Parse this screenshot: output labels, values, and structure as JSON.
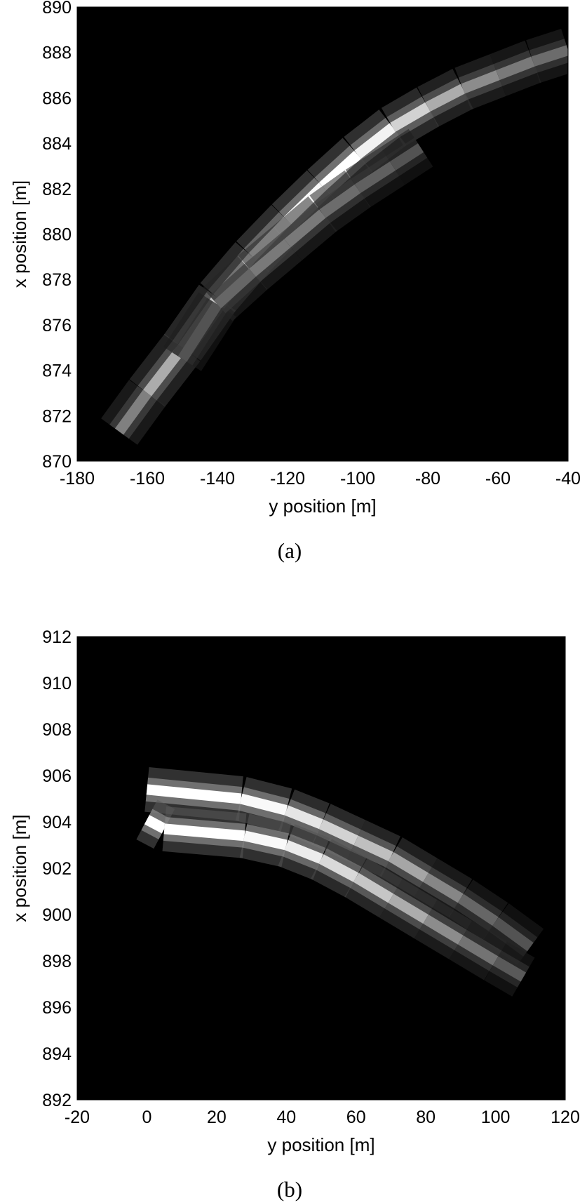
{
  "chart_data": [
    {
      "type": "heatmap",
      "caption": "(a)",
      "title": "",
      "xlabel": "y position [m]",
      "ylabel": "x position [m]",
      "xlim": [
        -180,
        -40
      ],
      "ylim": [
        870,
        890
      ],
      "xticks": [
        -180,
        -160,
        -140,
        -120,
        -100,
        -80,
        -60,
        -40
      ],
      "yticks": [
        870,
        872,
        874,
        876,
        878,
        880,
        882,
        884,
        886,
        888,
        890
      ],
      "background": "#000000",
      "grid": false,
      "series": [
        {
          "points": [
            [
              -168,
              871.3
            ],
            [
              -160,
              873.0
            ],
            [
              -150,
              875.0
            ],
            [
              -140,
              877.2
            ],
            [
              -130,
              879.0
            ],
            [
              -120,
              880.6
            ],
            [
              -110,
              882.1
            ],
            [
              -100,
              883.5
            ],
            [
              -90,
              884.7
            ],
            [
              -80,
              885.6
            ],
            [
              -70,
              886.4
            ],
            [
              -60,
              887.0
            ],
            [
              -50,
              887.6
            ],
            [
              -40,
              888.1
            ]
          ],
          "intensity": [
            0.4,
            0.6,
            0.75,
            0.8,
            0.85,
            0.95,
            1.0,
            1.0,
            0.9,
            0.75,
            0.6,
            0.5,
            0.45,
            0.4
          ]
        },
        {
          "points": [
            [
              -150,
              874.5
            ],
            [
              -140,
              876.9
            ],
            [
              -130,
              878.3
            ],
            [
              -120,
              879.6
            ],
            [
              -110,
              880.9
            ],
            [
              -100,
              882.0
            ],
            [
              -90,
              883.0
            ],
            [
              -82,
              883.8
            ]
          ],
          "intensity": [
            0.3,
            0.35,
            0.45,
            0.5,
            0.45,
            0.4,
            0.35,
            0.3
          ]
        }
      ]
    },
    {
      "type": "heatmap",
      "caption": "(b)",
      "title": "",
      "xlabel": "y position [m]",
      "ylabel": "x position [m]",
      "xlim": [
        -20,
        120
      ],
      "ylim": [
        892,
        912
      ],
      "xticks": [
        -20,
        0,
        20,
        40,
        60,
        80,
        100,
        120
      ],
      "yticks": [
        892,
        894,
        896,
        898,
        900,
        902,
        904,
        906,
        908,
        910,
        912
      ],
      "background": "#000000",
      "grid": false,
      "series": [
        {
          "points": [
            [
              0,
              905.4
            ],
            [
              27,
              905.0
            ],
            [
              40,
              904.5
            ],
            [
              50,
              903.9
            ],
            [
              60,
              903.2
            ],
            [
              70,
              902.5
            ],
            [
              80,
              901.6
            ],
            [
              90,
              900.7
            ],
            [
              100,
              899.7
            ],
            [
              110,
              898.6
            ]
          ],
          "intensity": [
            1.0,
            1.0,
            0.95,
            0.85,
            0.8,
            0.7,
            0.6,
            0.45,
            0.35,
            0.3
          ]
        },
        {
          "points": [
            [
              0,
              904.1
            ],
            [
              5,
              903.7
            ],
            [
              28,
              903.4
            ],
            [
              40,
              903.0
            ],
            [
              50,
              902.4
            ],
            [
              60,
              901.6
            ],
            [
              70,
              900.7
            ],
            [
              80,
              899.8
            ],
            [
              90,
              898.9
            ],
            [
              100,
              898.0
            ],
            [
              108,
              897.3
            ]
          ],
          "intensity": [
            1.0,
            1.0,
            1.0,
            0.95,
            0.9,
            0.8,
            0.75,
            0.6,
            0.5,
            0.4,
            0.3
          ]
        }
      ]
    }
  ]
}
